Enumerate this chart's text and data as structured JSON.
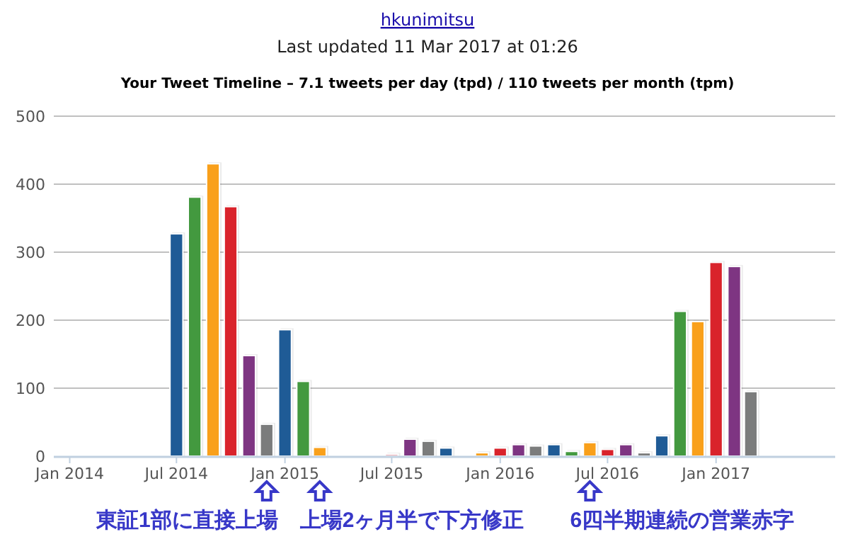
{
  "chart_data": {
    "type": "bar",
    "title": "Your Tweet Timeline – 7.1 tweets per day (tpd) / 110 tweets per month (tpm)",
    "subtitle": "Last updated 11 Mar 2017 at 01:26",
    "annotations": [
      "hkunimitsu",
      {
        "text": "東証1部に直接上場",
        "x": "2014-12",
        "y": 0
      },
      {
        "text": "上場2ヶ月半で下方修正",
        "x": "2015-03",
        "y": 0
      },
      {
        "text": "6四半期連続の営業赤字",
        "x": "2016-06",
        "y": 0
      }
    ],
    "x": [
      "2014-07",
      "2014-08",
      "2014-09",
      "2014-10",
      "2014-11",
      "2014-12",
      "2015-01",
      "2015-02",
      "2015-03",
      "2015-07",
      "2015-08",
      "2015-09",
      "2015-10",
      "2015-12",
      "2016-01",
      "2016-02",
      "2016-03",
      "2016-04",
      "2016-05",
      "2016-06",
      "2016-07",
      "2016-08",
      "2016-09",
      "2016-10",
      "2016-11",
      "2016-12",
      "2017-01",
      "2017-02",
      "2017-03"
    ],
    "values": [
      327,
      381,
      430,
      367,
      148,
      47,
      186,
      110,
      13,
      3,
      25,
      22,
      12,
      5,
      12,
      17,
      15,
      17,
      7,
      20,
      10,
      17,
      5,
      30,
      213,
      198,
      285,
      279,
      95
    ],
    "colors": [
      "#1f5b96",
      "#43993f",
      "#f9a01b",
      "#d9232b",
      "#7e3582",
      "#7b7c7c",
      "#1f5b96",
      "#43993f",
      "#f9a01b",
      "#e8a0a8",
      "#7e3582",
      "#7b7c7c",
      "#1f5b96",
      "#f9a01b",
      "#d9232b",
      "#7e3582",
      "#7b7c7c",
      "#1f5b96",
      "#43993f",
      "#f9a01b",
      "#d9232b",
      "#7e3582",
      "#7b7c7c",
      "#1f5b96",
      "#43993f",
      "#f9a01b",
      "#d9232b",
      "#7e3582",
      "#7b7c7c"
    ],
    "xlim": [
      "2013-12-05",
      "2017-07-22"
    ],
    "xticks": [
      {
        "value": "2014-01",
        "label": "Jan 2014"
      },
      {
        "value": "2014-07",
        "label": "Jul 2014"
      },
      {
        "value": "2015-01",
        "label": "Jan 2015"
      },
      {
        "value": "2015-07",
        "label": "Jul 2015"
      },
      {
        "value": "2016-01",
        "label": "Jan 2016"
      },
      {
        "value": "2016-07",
        "label": "Jul 2016"
      },
      {
        "value": "2017-01",
        "label": "Jan 2017"
      }
    ],
    "ylim": [
      0,
      500
    ],
    "yticks": [
      0,
      100,
      200,
      300,
      400,
      500
    ],
    "grid": "y"
  }
}
